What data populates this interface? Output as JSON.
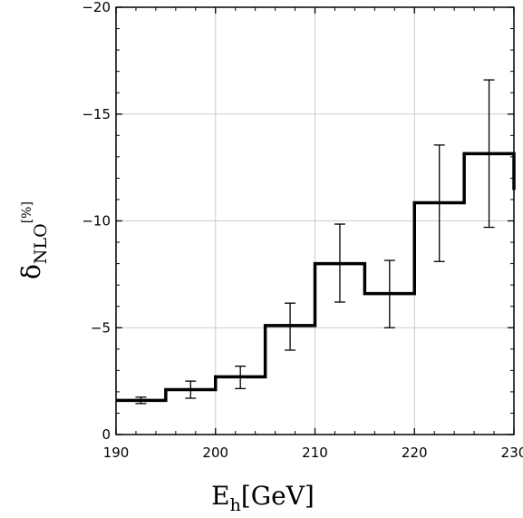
{
  "chart_data": {
    "type": "line",
    "step": true,
    "xlabel_main": "E",
    "xlabel_sub": "h",
    "xlabel_tail": "[GeV]",
    "ylabel_main": "δ",
    "ylabel_sub": "NLO",
    "ylabel_sup": "[%]",
    "xlim": [
      190,
      230
    ],
    "ylim": [
      0,
      -20
    ],
    "y_inverted": true,
    "grid": true,
    "x_ticks": [
      190,
      200,
      210,
      220,
      230
    ],
    "y_ticks": [
      0,
      -5,
      -10,
      -15,
      -20
    ],
    "y_tick_labels": [
      "0",
      "−5",
      "−10",
      "−15",
      "−20"
    ],
    "bins": [
      {
        "x0": 190,
        "x1": 195,
        "center": 192.5,
        "value": -1.6,
        "err_low": -1.45,
        "err_high": -1.75
      },
      {
        "x0": 195,
        "x1": 200,
        "center": 197.5,
        "value": -2.1,
        "err_low": -1.7,
        "err_high": -2.5
      },
      {
        "x0": 200,
        "x1": 205,
        "center": 202.5,
        "value": -2.7,
        "err_low": -2.15,
        "err_high": -3.2
      },
      {
        "x0": 205,
        "x1": 210,
        "center": 207.5,
        "value": -5.1,
        "err_low": -3.95,
        "err_high": -6.15
      },
      {
        "x0": 210,
        "x1": 215,
        "center": 212.5,
        "value": -8.0,
        "err_low": -6.2,
        "err_high": -9.85
      },
      {
        "x0": 215,
        "x1": 220,
        "center": 217.5,
        "value": -6.6,
        "err_low": -5.0,
        "err_high": -8.15
      },
      {
        "x0": 220,
        "x1": 225,
        "center": 222.5,
        "value": -10.85,
        "err_low": -8.1,
        "err_high": -13.55
      },
      {
        "x0": 225,
        "x1": 230,
        "center": 227.5,
        "value": -13.15,
        "err_low": -9.7,
        "err_high": -16.6
      }
    ],
    "last_value_at_edge": -11.45
  }
}
